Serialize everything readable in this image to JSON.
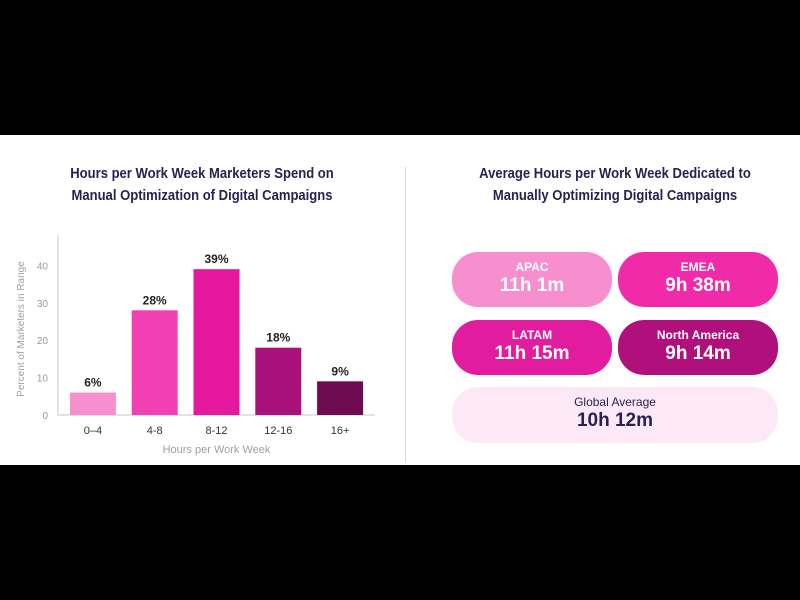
{
  "left": {
    "title_line1": "Hours per Work Week Marketers Spend on",
    "title_line2": "Manual Optimization of Digital Campaigns"
  },
  "right": {
    "title_line1": "Average Hours per Work Week Dedicated to",
    "title_line2": "Manually Optimizing Digital Campaigns",
    "regions": [
      {
        "label": "APAC",
        "value": "11h 1m",
        "color": "#f78fcf"
      },
      {
        "label": "EMEA",
        "value": "9h 38m",
        "color": "#f02aa8"
      },
      {
        "label": "LATAM",
        "value": "11h 15m",
        "color": "#e21c9e"
      },
      {
        "label": "North America",
        "value": "9h 14m",
        "color": "#b0107c"
      }
    ],
    "global": {
      "label": "Global Average",
      "value": "10h 12m",
      "color": "#fde8f5"
    }
  },
  "chart_data": {
    "type": "bar",
    "categories": [
      "0–4",
      "4-8",
      "8-12",
      "12-16",
      "16+"
    ],
    "values": [
      6,
      28,
      39,
      18,
      9
    ],
    "value_labels": [
      "6%",
      "28%",
      "39%",
      "18%",
      "9%"
    ],
    "colors": [
      "#f78fcf",
      "#f240b4",
      "#e6189e",
      "#a8107a",
      "#6e0a50"
    ],
    "xlabel": "Hours per Work Week",
    "ylabel": "Percent of Marketers in Range",
    "yticks": [
      0,
      10,
      20,
      30,
      40
    ],
    "ylim": [
      0,
      46
    ],
    "grid": false
  }
}
